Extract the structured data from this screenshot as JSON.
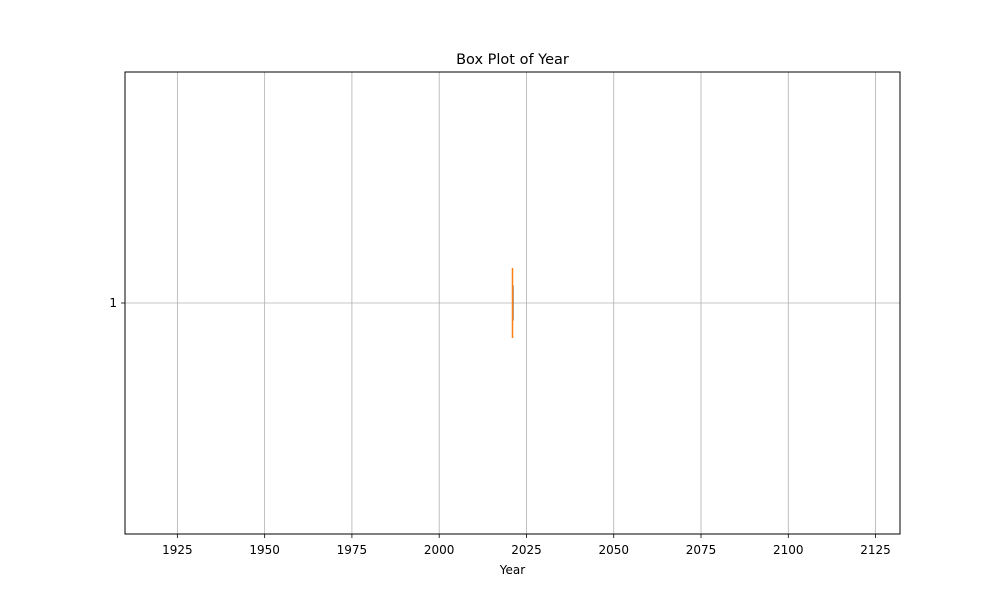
{
  "chart_data": {
    "type": "box",
    "title": "Box Plot of Year",
    "xlabel": "Year",
    "ylabel": "",
    "orientation": "horizontal",
    "xlim": [
      1910,
      2132
    ],
    "x_ticks": [
      1925,
      1950,
      1975,
      2000,
      2025,
      2050,
      2075,
      2100,
      2125
    ],
    "y_ticks": [
      "1"
    ],
    "grid": true,
    "boxes": [
      {
        "position": "1",
        "whisker_low": 2021,
        "q1": 2021,
        "median": 2021,
        "q3": 2021,
        "whisker_high": 2021
      }
    ],
    "colors": {
      "median": "#ff7f0e",
      "box": "#000000",
      "grid": "#b0b0b0"
    }
  }
}
